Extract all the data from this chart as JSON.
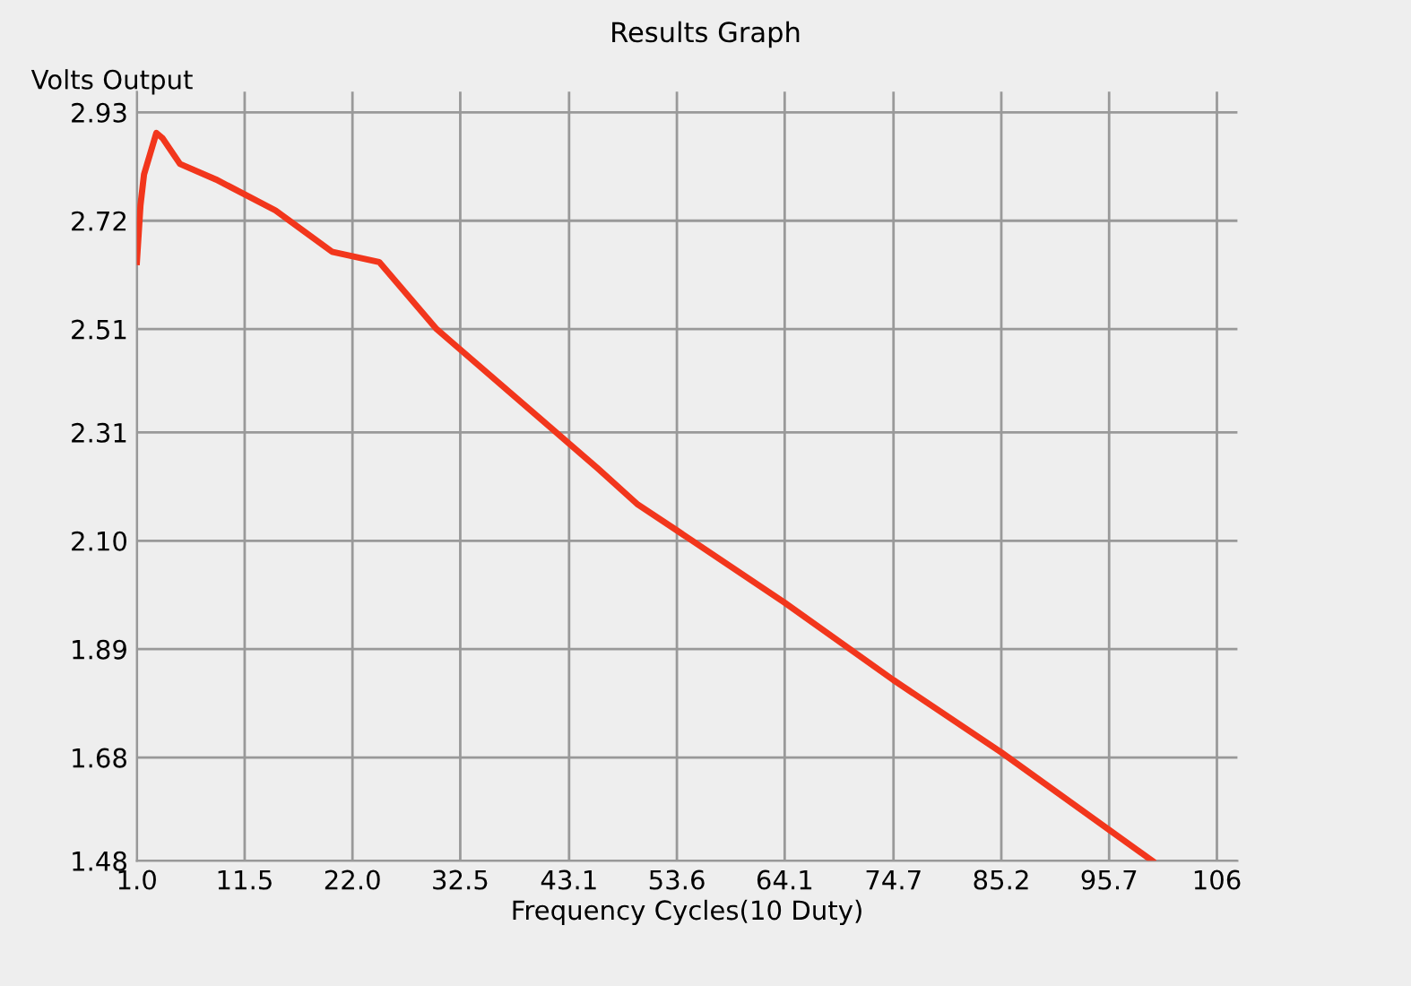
{
  "chart_data": {
    "type": "line",
    "title": "Results Graph",
    "xlabel": "Frequency Cycles(10 Duty)",
    "ylabel": "Volts Output",
    "series": [
      {
        "color": "#f2361c",
        "x": [
          1.0,
          1.35,
          1.7,
          2.9,
          3.5,
          5.2,
          8.7,
          14.5,
          20.0,
          24.6,
          30.2,
          40.1,
          45.9,
          49.8,
          53.6,
          64.1,
          74.7,
          85.2,
          99.9
        ],
        "values": [
          2.64,
          2.75,
          2.81,
          2.89,
          2.88,
          2.83,
          2.8,
          2.74,
          2.66,
          2.64,
          2.51,
          2.34,
          2.24,
          2.17,
          2.12,
          1.98,
          1.83,
          1.69,
          1.48
        ]
      }
    ],
    "xlim": [
      1.0,
      108.2
    ],
    "ylim": [
      1.48,
      2.97
    ],
    "xticks": [
      {
        "value": 1.0,
        "label": "1.0"
      },
      11.5,
      {
        "value": 22.0,
        "label": "22.0"
      },
      32.5,
      43.1,
      53.6,
      64.1,
      74.7,
      85.2,
      95.7,
      {
        "value": 106.2,
        "label": "106"
      }
    ],
    "yticks": [
      1.48,
      1.68,
      1.89,
      {
        "value": 2.1,
        "label": "2.10"
      },
      2.31,
      2.51,
      2.72,
      2.93
    ],
    "grid": true,
    "legend": false,
    "marker": "none",
    "line_style": "solid"
  }
}
